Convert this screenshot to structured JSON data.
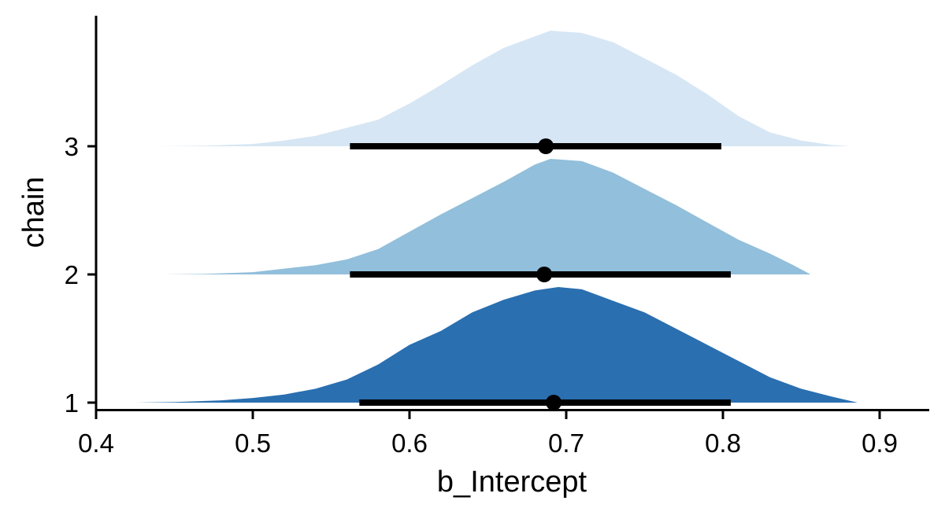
{
  "chart_data": {
    "type": "area",
    "subtype": "half-eye density with point interval",
    "xlabel": "b_Intercept",
    "ylabel": "chain",
    "xlim": [
      0.4,
      0.93
    ],
    "x_ticks": [
      0.4,
      0.5,
      0.6,
      0.7,
      0.8,
      0.9
    ],
    "categories": [
      "1",
      "2",
      "3"
    ],
    "grid": false,
    "legend": "none",
    "series": [
      {
        "category": "1",
        "color": "#2a6fb0",
        "point": 0.692,
        "interval": [
          0.568,
          0.805
        ],
        "density": [
          [
            0.425,
            0.0
          ],
          [
            0.45,
            0.005
          ],
          [
            0.48,
            0.02
          ],
          [
            0.5,
            0.04
          ],
          [
            0.52,
            0.07
          ],
          [
            0.54,
            0.12
          ],
          [
            0.56,
            0.2
          ],
          [
            0.58,
            0.33
          ],
          [
            0.6,
            0.5
          ],
          [
            0.62,
            0.62
          ],
          [
            0.64,
            0.78
          ],
          [
            0.66,
            0.89
          ],
          [
            0.68,
            0.97
          ],
          [
            0.695,
            1.0
          ],
          [
            0.71,
            0.98
          ],
          [
            0.73,
            0.88
          ],
          [
            0.75,
            0.78
          ],
          [
            0.77,
            0.64
          ],
          [
            0.79,
            0.5
          ],
          [
            0.81,
            0.36
          ],
          [
            0.83,
            0.22
          ],
          [
            0.85,
            0.12
          ],
          [
            0.87,
            0.05
          ],
          [
            0.886,
            0.0
          ]
        ]
      },
      {
        "category": "2",
        "color": "#92bfdb",
        "point": 0.686,
        "interval": [
          0.562,
          0.805
        ],
        "density": [
          [
            0.443,
            0.0
          ],
          [
            0.47,
            0.005
          ],
          [
            0.5,
            0.02
          ],
          [
            0.52,
            0.05
          ],
          [
            0.54,
            0.08
          ],
          [
            0.56,
            0.13
          ],
          [
            0.58,
            0.22
          ],
          [
            0.6,
            0.37
          ],
          [
            0.62,
            0.52
          ],
          [
            0.64,
            0.66
          ],
          [
            0.66,
            0.8
          ],
          [
            0.68,
            0.95
          ],
          [
            0.69,
            1.0
          ],
          [
            0.71,
            0.98
          ],
          [
            0.73,
            0.88
          ],
          [
            0.75,
            0.74
          ],
          [
            0.77,
            0.6
          ],
          [
            0.79,
            0.45
          ],
          [
            0.81,
            0.3
          ],
          [
            0.83,
            0.18
          ],
          [
            0.845,
            0.08
          ],
          [
            0.856,
            0.0
          ]
        ]
      },
      {
        "category": "3",
        "color": "#d6e6f4",
        "point": 0.687,
        "interval": [
          0.562,
          0.799
        ],
        "density": [
          [
            0.437,
            0.0
          ],
          [
            0.47,
            0.005
          ],
          [
            0.5,
            0.02
          ],
          [
            0.52,
            0.05
          ],
          [
            0.54,
            0.09
          ],
          [
            0.56,
            0.16
          ],
          [
            0.58,
            0.23
          ],
          [
            0.6,
            0.37
          ],
          [
            0.62,
            0.53
          ],
          [
            0.64,
            0.7
          ],
          [
            0.66,
            0.85
          ],
          [
            0.68,
            0.95
          ],
          [
            0.69,
            1.0
          ],
          [
            0.71,
            0.98
          ],
          [
            0.73,
            0.9
          ],
          [
            0.75,
            0.76
          ],
          [
            0.77,
            0.62
          ],
          [
            0.79,
            0.45
          ],
          [
            0.81,
            0.26
          ],
          [
            0.83,
            0.12
          ],
          [
            0.85,
            0.05
          ],
          [
            0.87,
            0.01
          ],
          [
            0.882,
            0.0
          ]
        ]
      }
    ]
  }
}
